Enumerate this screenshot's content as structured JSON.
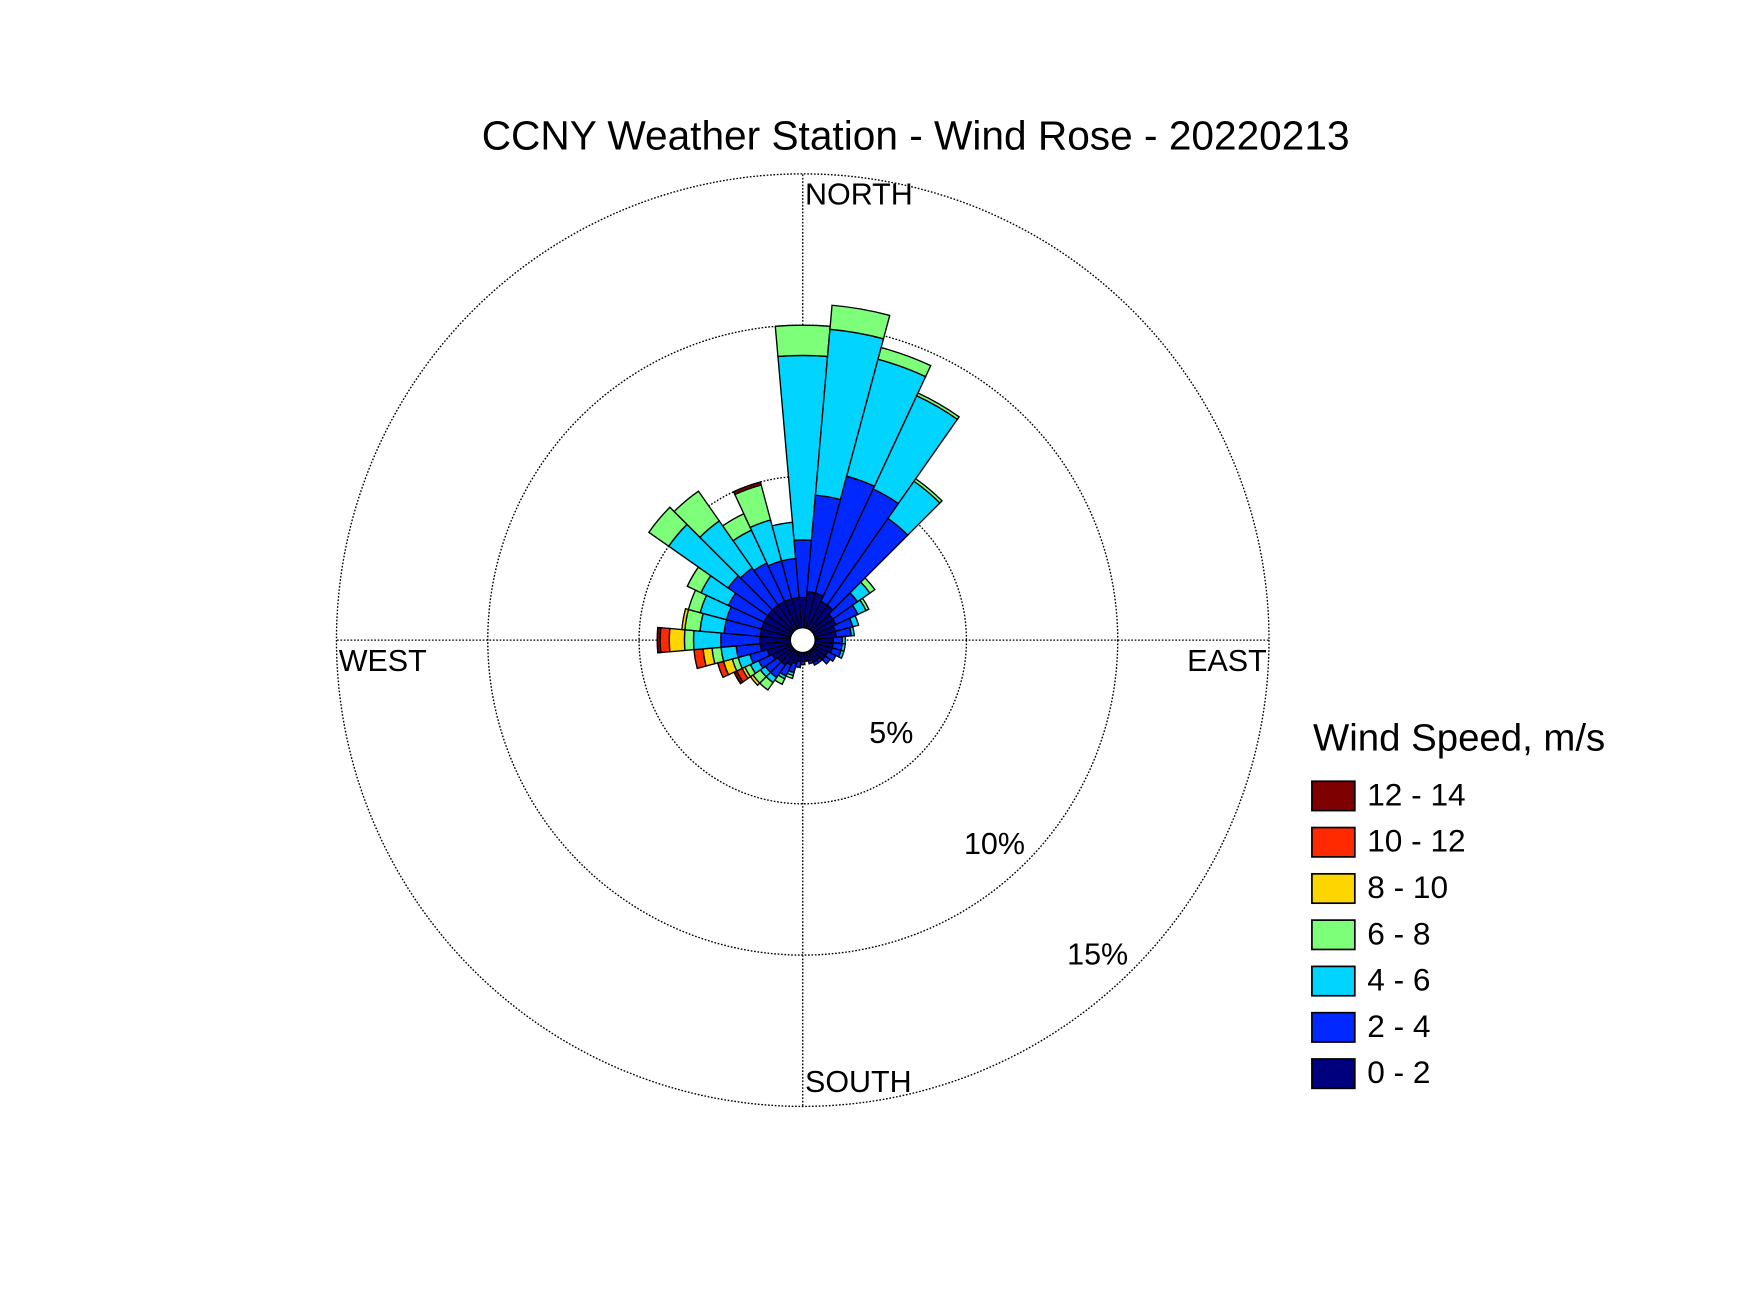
{
  "chart_data": {
    "type": "windrose",
    "title": "CCNY Weather Station - Wind Rose - 20220213",
    "legend_title": "Wind Speed, m/s",
    "x": [
      0,
      10,
      20,
      30,
      40,
      50,
      60,
      70,
      80,
      90,
      100,
      110,
      120,
      130,
      140,
      150,
      160,
      170,
      180,
      190,
      200,
      210,
      220,
      230,
      240,
      250,
      260,
      270,
      280,
      290,
      300,
      310,
      320,
      330,
      340,
      350
    ],
    "xlim": [
      0,
      360
    ],
    "xticks": [
      {
        "value": 0,
        "label": "NORTH"
      },
      {
        "value": 90,
        "label": "EAST"
      },
      {
        "value": 180,
        "label": "SOUTH"
      },
      {
        "value": 270,
        "label": "WEST"
      }
    ],
    "ylim": [
      0,
      15
    ],
    "yticks": [
      {
        "value": 5,
        "label": "5%"
      },
      {
        "value": 10,
        "label": "10%"
      },
      {
        "value": 15,
        "label": "15%"
      }
    ],
    "grid": true,
    "series": [
      {
        "name": "0 - 2",
        "color": "#00007f",
        "values": [
          1.0,
          1.2,
          1.2,
          1.0,
          1.0,
          0.8,
          0.8,
          0.7,
          0.7,
          0.6,
          0.6,
          0.6,
          0.5,
          0.5,
          0.4,
          0.4,
          0.3,
          0.3,
          0.3,
          0.3,
          0.4,
          0.5,
          0.6,
          0.6,
          0.7,
          0.8,
          1.0,
          1.0,
          1.0,
          1.0,
          1.0,
          1.0,
          1.0,
          1.0,
          1.0,
          1.0
        ]
      },
      {
        "name": "2 - 4",
        "color": "#0028ff",
        "values": [
          1.9,
          3.2,
          4.0,
          4.1,
          3.5,
          1.0,
          0.8,
          0.6,
          0.5,
          0.3,
          0.3,
          0.3,
          0.3,
          0.2,
          0.1,
          0.1,
          0.1,
          0,
          0.1,
          0.2,
          0.3,
          0.4,
          0.5,
          0.5,
          0.5,
          0.6,
          0.8,
          1.3,
          1.2,
          1.2,
          1.3,
          1.6,
          1.5,
          1.4,
          1.3,
          1.3
        ]
      },
      {
        "name": "4 - 6",
        "color": "#00d4ff",
        "values": [
          6.1,
          5.5,
          4.0,
          3.4,
          1.5,
          0.5,
          0.3,
          0.2,
          0.1,
          0.1,
          0.1,
          0.1,
          0,
          0,
          0,
          0,
          0,
          0,
          0,
          0,
          0.1,
          0.1,
          0.2,
          0.2,
          0.3,
          0.4,
          0.5,
          0.9,
          0.8,
          0.9,
          1.0,
          2.4,
          1.9,
          1.2,
          1.4,
          1.2
        ]
      },
      {
        "name": "6 - 8",
        "color": "#7dff7a",
        "values": [
          1.0,
          0.8,
          0.4,
          0.1,
          0.1,
          0.2,
          0.1,
          0,
          0,
          0,
          0,
          0,
          0,
          0,
          0,
          0,
          0,
          0,
          0,
          0,
          0.1,
          0.2,
          0.3,
          0.3,
          0.2,
          0.2,
          0.3,
          0.3,
          0.5,
          0.4,
          0.5,
          0.8,
          1.2,
          0.6,
          1.2,
          0
        ]
      },
      {
        "name": "8 - 10",
        "color": "#ffd500",
        "values": [
          0,
          0,
          0,
          0,
          0,
          0,
          0,
          0,
          0,
          0,
          0,
          0,
          0,
          0,
          0,
          0,
          0,
          0,
          0,
          0,
          0,
          0,
          0,
          0.1,
          0.1,
          0.3,
          0.3,
          0.5,
          0.1,
          0,
          0,
          0,
          0,
          0,
          0,
          0
        ]
      },
      {
        "name": "10 - 12",
        "color": "#ff2a00",
        "values": [
          0,
          0,
          0,
          0,
          0,
          0,
          0,
          0,
          0,
          0,
          0,
          0,
          0,
          0,
          0,
          0,
          0,
          0,
          0,
          0,
          0,
          0,
          0,
          0,
          0.2,
          0.2,
          0.3,
          0.3,
          0,
          0,
          0,
          0,
          0,
          0,
          0,
          0
        ]
      },
      {
        "name": "12 - 14",
        "color": "#7f0000",
        "values": [
          0,
          0,
          0,
          0,
          0,
          0,
          0,
          0,
          0,
          0,
          0,
          0,
          0,
          0,
          0,
          0,
          0,
          0,
          0,
          0,
          0,
          0,
          0,
          0,
          0.1,
          0,
          0,
          0.1,
          0,
          0,
          0,
          0,
          0,
          0,
          0.1,
          0
        ]
      }
    ]
  }
}
